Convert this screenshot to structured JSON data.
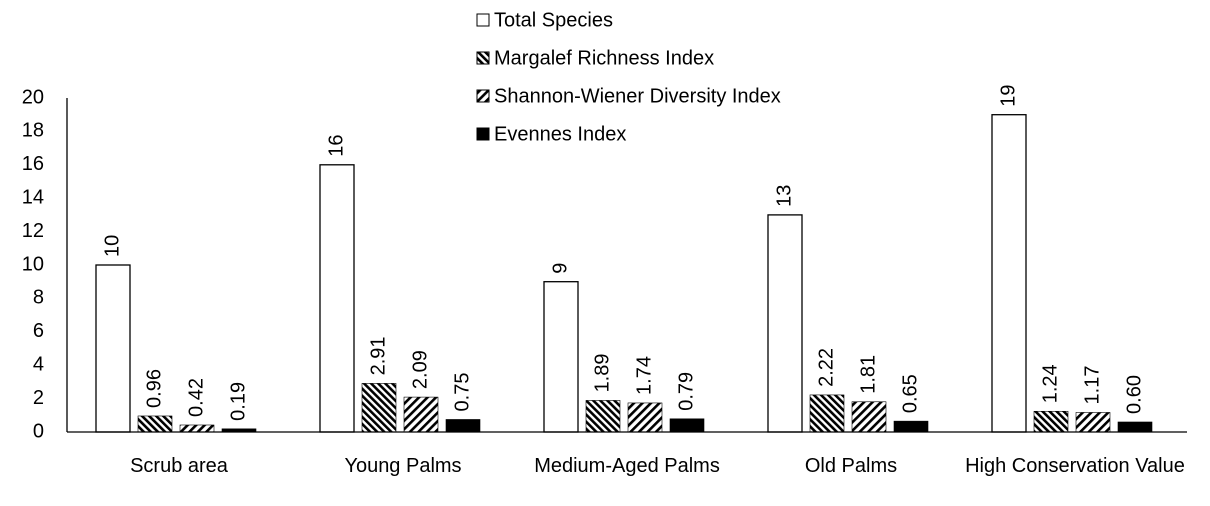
{
  "chart_data": {
    "type": "bar",
    "categories": [
      "Scrub area",
      "Young Palms",
      "Medium-Aged Palms",
      "Old Palms",
      "High Conservation Value"
    ],
    "series": [
      {
        "name": "Total Species",
        "color": "#ffffff",
        "pattern": "none",
        "values": [
          10,
          16,
          9,
          13,
          19
        ],
        "value_labels": [
          "10",
          "16",
          "9",
          "13",
          "19"
        ]
      },
      {
        "name": "Margalef Richness Index",
        "color": "#000000",
        "pattern": "backward-diagonal",
        "values": [
          0.96,
          2.91,
          1.89,
          2.22,
          1.24
        ],
        "value_labels": [
          "0.96",
          "2.91",
          "1.89",
          "2.22",
          "1.24"
        ]
      },
      {
        "name": "Shannon-Wiener Diversity Index",
        "color": "#000000",
        "pattern": "forward-diagonal",
        "values": [
          0.42,
          2.09,
          1.74,
          1.81,
          1.17
        ],
        "value_labels": [
          "0.42",
          "2.09",
          "1.74",
          "1.81",
          "1.17"
        ]
      },
      {
        "name": "Evennes Index",
        "color": "#000000",
        "pattern": "solid",
        "values": [
          0.19,
          0.75,
          0.79,
          0.65,
          0.6
        ],
        "value_labels": [
          "0.19",
          "0.75",
          "0.79",
          "0.65",
          "0.60"
        ]
      }
    ],
    "ylim": [
      0,
      20
    ],
    "yticks": [
      0,
      2,
      4,
      6,
      8,
      10,
      12,
      14,
      16,
      18,
      20
    ],
    "grid": false,
    "legend": "top"
  }
}
